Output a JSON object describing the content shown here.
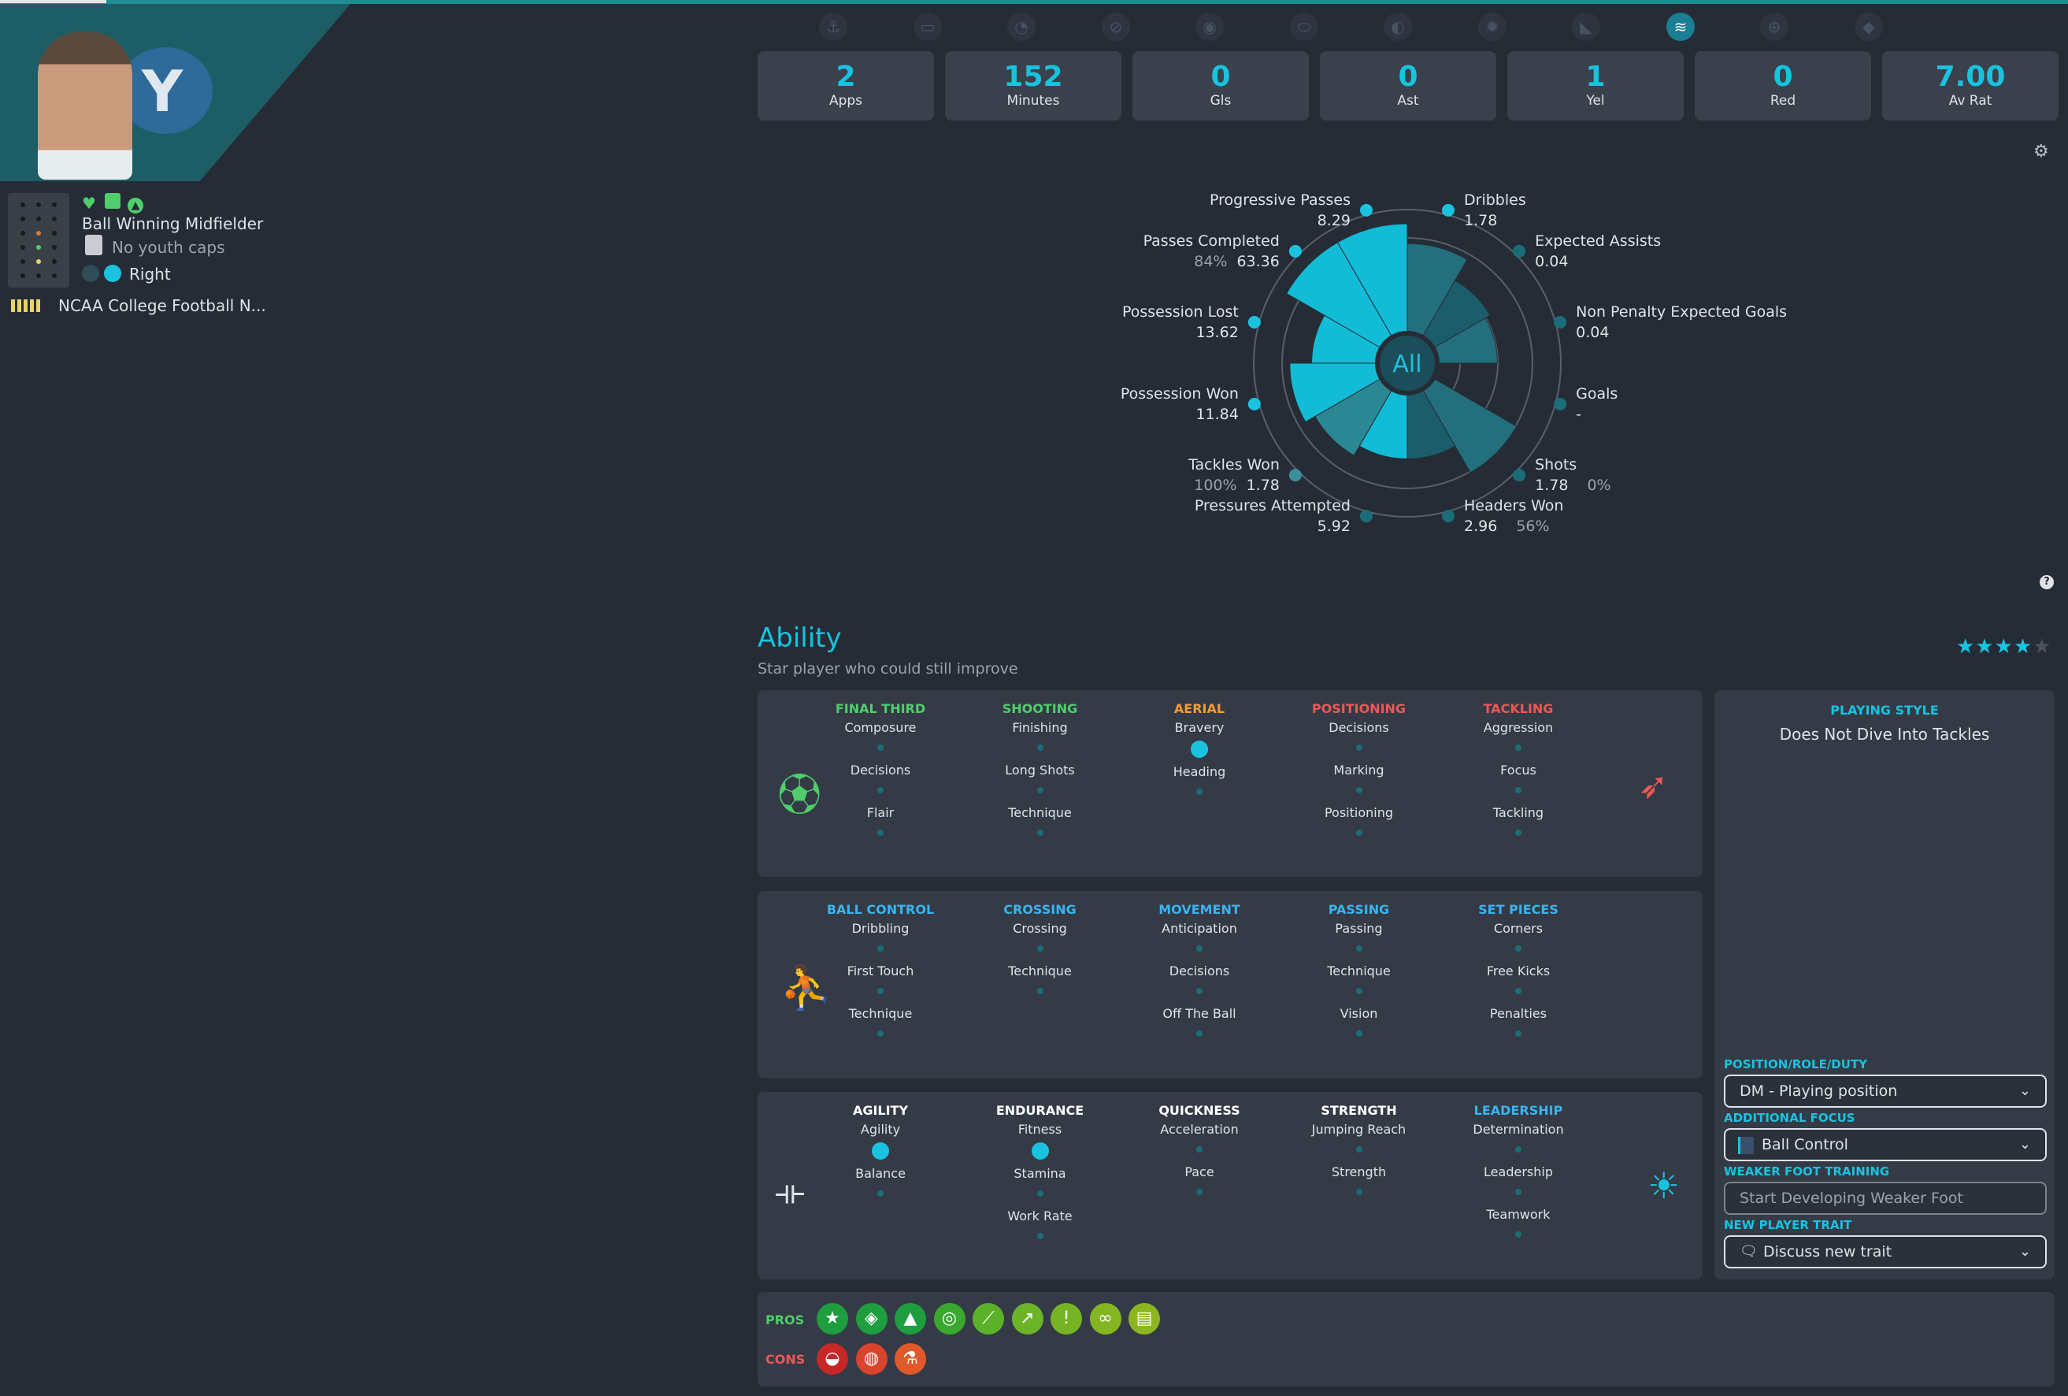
{
  "player": {
    "role": "Ball Winning Midfielder",
    "youth_caps": "No youth caps",
    "foot": "Right",
    "club": "NCAA College Football N...",
    "club_logo_letter": "Y"
  },
  "tab_icons": [
    "anchor-icon",
    "screen-icon",
    "brain-icon",
    "ban-icon",
    "eye-icon",
    "pill-icon",
    "search-face-icon",
    "gear-icon",
    "boot-icon",
    "wave-icon",
    "target-icon",
    "cat-icon"
  ],
  "tab_glyphs": [
    "⚓",
    "▭",
    "◔",
    "⊘",
    "◉",
    "⬭",
    "◐",
    "✹",
    "◣",
    "≋",
    "⊕",
    "◆"
  ],
  "active_tab_index": 9,
  "stats": [
    {
      "value": "2",
      "label": "Apps"
    },
    {
      "value": "152",
      "label": "Minutes"
    },
    {
      "value": "0",
      "label": "Gls"
    },
    {
      "value": "0",
      "label": "Ast"
    },
    {
      "value": "1",
      "label": "Yel"
    },
    {
      "value": "0",
      "label": "Red"
    },
    {
      "value": "7.00",
      "label": "Av Rat"
    }
  ],
  "radar": {
    "center_label": "All",
    "metrics": [
      {
        "name": "Dribbles",
        "value": "1.78",
        "pct": "",
        "level": 0.82
      },
      {
        "name": "Expected Assists",
        "value": "0.04",
        "pct": "",
        "level": 0.6
      },
      {
        "name": "Non Penalty Expected Goals",
        "value": "0.04",
        "pct": "",
        "level": 0.55
      },
      {
        "name": "Goals",
        "value": "-",
        "pct": "",
        "level": 0.0
      },
      {
        "name": "Shots",
        "value": "1.78",
        "pct": "0%",
        "level": 0.88
      },
      {
        "name": "Headers Won",
        "value": "2.96",
        "pct": "56%",
        "level": 0.6
      },
      {
        "name": "Pressures Attempted",
        "value": "5.92",
        "pct": "",
        "level": 0.6
      },
      {
        "name": "Tackles Won",
        "value": "1.78",
        "pct": "100%",
        "level": 0.7
      },
      {
        "name": "Possession Won",
        "value": "11.84",
        "pct": "",
        "level": 0.8
      },
      {
        "name": "Possession Lost",
        "value": "13.62",
        "pct": "",
        "level": 0.6
      },
      {
        "name": "Passes Completed",
        "value": "63.36",
        "pct": "84%",
        "level": 1.0
      },
      {
        "name": "Progressive Passes",
        "value": "8.29",
        "pct": "",
        "level": 1.0
      }
    ]
  },
  "ability": {
    "title": "Ability",
    "subtitle": "Star player who could still improve",
    "stars": "★★★★",
    "star_empty": "★"
  },
  "panels": [
    {
      "columns": [
        {
          "cat": "FINAL THIRD",
          "color": "green",
          "attrs": [
            {
              "n": "Composure",
              "big": false
            },
            {
              "n": "Decisions",
              "big": false
            },
            {
              "n": "Flair",
              "big": false
            }
          ]
        },
        {
          "cat": "SHOOTING",
          "color": "green",
          "attrs": [
            {
              "n": "Finishing",
              "big": false
            },
            {
              "n": "Long Shots",
              "big": false
            },
            {
              "n": "Technique",
              "big": false
            }
          ]
        },
        {
          "cat": "AERIAL",
          "color": "orange",
          "attrs": [
            {
              "n": "Bravery",
              "big": true
            },
            {
              "n": "Heading",
              "big": false
            }
          ]
        },
        {
          "cat": "POSITIONING",
          "color": "red",
          "attrs": [
            {
              "n": "Decisions",
              "big": false
            },
            {
              "n": "Marking",
              "big": false
            },
            {
              "n": "Positioning",
              "big": false
            }
          ]
        },
        {
          "cat": "TACKLING",
          "color": "red",
          "attrs": [
            {
              "n": "Aggression",
              "big": false
            },
            {
              "n": "Focus",
              "big": false
            },
            {
              "n": "Tackling",
              "big": false
            }
          ]
        }
      ]
    },
    {
      "columns": [
        {
          "cat": "BALL CONTROL",
          "color": "blue",
          "attrs": [
            {
              "n": "Dribbling",
              "big": false
            },
            {
              "n": "First Touch",
              "big": false
            },
            {
              "n": "Technique",
              "big": false
            }
          ]
        },
        {
          "cat": "CROSSING",
          "color": "blue",
          "attrs": [
            {
              "n": "Crossing",
              "big": false
            },
            {
              "n": "Technique",
              "big": false
            }
          ]
        },
        {
          "cat": "MOVEMENT",
          "color": "blue",
          "attrs": [
            {
              "n": "Anticipation",
              "big": false
            },
            {
              "n": "Decisions",
              "big": false
            },
            {
              "n": "Off The Ball",
              "big": false
            }
          ]
        },
        {
          "cat": "PASSING",
          "color": "blue",
          "attrs": [
            {
              "n": "Passing",
              "big": false
            },
            {
              "n": "Technique",
              "big": false
            },
            {
              "n": "Vision",
              "big": false
            }
          ]
        },
        {
          "cat": "SET PIECES",
          "color": "blue",
          "attrs": [
            {
              "n": "Corners",
              "big": false
            },
            {
              "n": "Free Kicks",
              "big": false
            },
            {
              "n": "Penalties",
              "big": false
            }
          ]
        }
      ]
    },
    {
      "columns": [
        {
          "cat": "AGILITY",
          "color": "white",
          "attrs": [
            {
              "n": "Agility",
              "big": true
            },
            {
              "n": "Balance",
              "big": false
            }
          ]
        },
        {
          "cat": "ENDURANCE",
          "color": "white",
          "attrs": [
            {
              "n": "Fitness",
              "big": true
            },
            {
              "n": "Stamina",
              "big": false
            },
            {
              "n": "Work Rate",
              "big": false
            }
          ]
        },
        {
          "cat": "QUICKNESS",
          "color": "white",
          "attrs": [
            {
              "n": "Acceleration",
              "big": false
            },
            {
              "n": "Pace",
              "big": false
            }
          ]
        },
        {
          "cat": "STRENGTH",
          "color": "white",
          "attrs": [
            {
              "n": "Jumping Reach",
              "big": false
            },
            {
              "n": "Strength",
              "big": false
            }
          ]
        },
        {
          "cat": "LEADERSHIP",
          "color": "blue",
          "attrs": [
            {
              "n": "Determination",
              "big": false
            },
            {
              "n": "Leadership",
              "big": false
            },
            {
              "n": "Teamwork",
              "big": false
            }
          ]
        }
      ]
    }
  ],
  "playing_style": {
    "label": "PLAYING STYLE",
    "value": "Does Not Dive Into Tackles"
  },
  "training": {
    "position_label": "POSITION/ROLE/DUTY",
    "position_value": "DM - Playing position",
    "focus_label": "ADDITIONAL FOCUS",
    "focus_value": "Ball Control",
    "weaker_label": "WEAKER FOOT TRAINING",
    "weaker_placeholder": "Start Developing Weaker Foot",
    "trait_label": "NEW PLAYER TRAIT",
    "trait_value": "Discuss new trait"
  },
  "pros_label": "PROS",
  "cons_label": "CONS",
  "pros": [
    {
      "icon": "star-icon",
      "glyph": "★",
      "color": "#1e9e3e"
    },
    {
      "icon": "shield-icon",
      "glyph": "◈",
      "color": "#1e9e3e"
    },
    {
      "icon": "cones-icon",
      "glyph": "▲",
      "color": "#1e9e3e"
    },
    {
      "icon": "target-icon",
      "glyph": "◎",
      "color": "#3aa82f"
    },
    {
      "icon": "bandage-icon",
      "glyph": "⟋",
      "color": "#5bb22a"
    },
    {
      "icon": "trend-icon",
      "glyph": "↗",
      "color": "#6cb427"
    },
    {
      "icon": "alert-ball-icon",
      "glyph": "!",
      "color": "#76b424"
    },
    {
      "icon": "handshake-icon",
      "glyph": "∞",
      "color": "#84b621"
    },
    {
      "icon": "document-icon",
      "glyph": "▤",
      "color": "#8cb61f"
    }
  ],
  "cons": [
    {
      "icon": "whistle-icon",
      "glyph": "◒",
      "color": "#c62828"
    },
    {
      "icon": "head-icon",
      "glyph": "◍",
      "color": "#d8442c"
    },
    {
      "icon": "flask-icon",
      "glyph": "⚗",
      "color": "#e0592a"
    }
  ]
}
